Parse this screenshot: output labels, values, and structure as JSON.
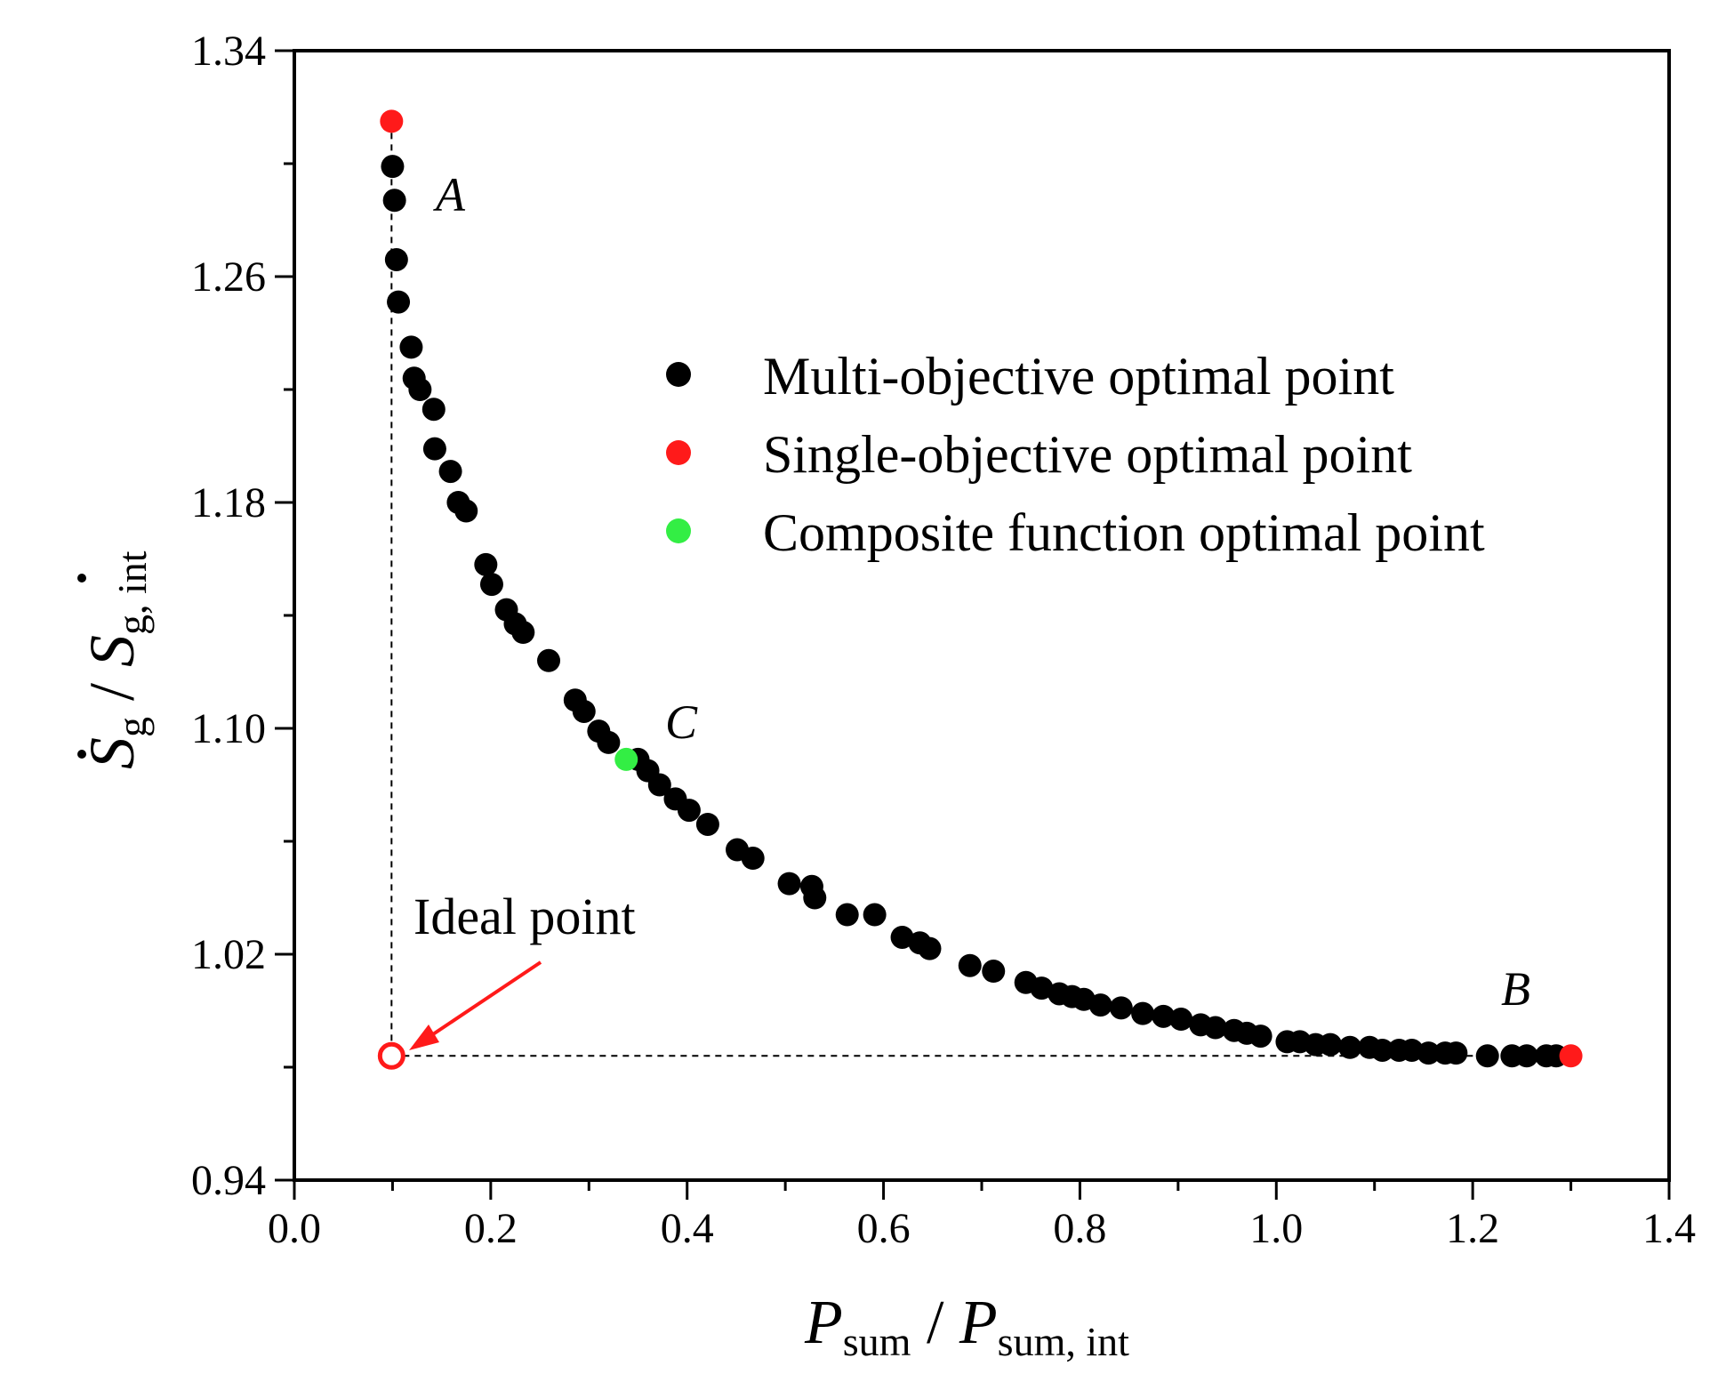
{
  "chart_data": {
    "type": "scatter",
    "title": "",
    "xlim": [
      0.0,
      1.4
    ],
    "ylim": [
      0.94,
      1.34
    ],
    "xticks": [
      "0.0",
      "0.2",
      "0.4",
      "0.6",
      "0.8",
      "1.0",
      "1.2",
      "1.4"
    ],
    "yticks": [
      "0.94",
      "1.02",
      "1.10",
      "1.18",
      "1.26",
      "1.34"
    ],
    "xlabel": {
      "main": "P",
      "sub1": "sum",
      "sep": " / ",
      "main2": "P",
      "sub2": "sum, int"
    },
    "ylabel": {
      "main": "S",
      "sub1": "g",
      "sep": " / ",
      "main2": "S",
      "sub2": "g, int"
    },
    "legend": [
      {
        "label": "Multi-objective optimal point",
        "color": "#000000"
      },
      {
        "label": "Single-objective optimal point",
        "color": "#ff1a1a"
      },
      {
        "label": "Composite function optimal point",
        "color": "#33ee44"
      }
    ],
    "annotations": {
      "A": "A",
      "B": "B",
      "C": "C",
      "ideal": "Ideal point"
    },
    "colors": {
      "multi": "#000000",
      "single": "#ff1a1a",
      "composite": "#33ee44",
      "arrow": "#ff1a1a"
    },
    "series": [
      {
        "name": "Multi-objective optimal point",
        "points": [
          [
            0.1,
            1.299
          ],
          [
            0.102,
            1.287
          ],
          [
            0.104,
            1.266
          ],
          [
            0.106,
            1.251
          ],
          [
            0.119,
            1.235
          ],
          [
            0.122,
            1.224
          ],
          [
            0.128,
            1.22
          ],
          [
            0.142,
            1.213
          ],
          [
            0.143,
            1.199
          ],
          [
            0.159,
            1.191
          ],
          [
            0.167,
            1.18
          ],
          [
            0.175,
            1.177
          ],
          [
            0.195,
            1.158
          ],
          [
            0.201,
            1.151
          ],
          [
            0.216,
            1.142
          ],
          [
            0.225,
            1.137
          ],
          [
            0.233,
            1.134
          ],
          [
            0.259,
            1.124
          ],
          [
            0.286,
            1.11
          ],
          [
            0.295,
            1.106
          ],
          [
            0.31,
            1.099
          ],
          [
            0.32,
            1.095
          ],
          [
            0.35,
            1.089
          ],
          [
            0.36,
            1.085
          ],
          [
            0.372,
            1.08
          ],
          [
            0.388,
            1.075
          ],
          [
            0.402,
            1.071
          ],
          [
            0.421,
            1.066
          ],
          [
            0.451,
            1.057
          ],
          [
            0.467,
            1.054
          ],
          [
            0.504,
            1.045
          ],
          [
            0.527,
            1.044
          ],
          [
            0.53,
            1.04
          ],
          [
            0.563,
            1.034
          ],
          [
            0.591,
            1.034
          ],
          [
            0.619,
            1.026
          ],
          [
            0.637,
            1.024
          ],
          [
            0.647,
            1.022
          ],
          [
            0.688,
            1.016
          ],
          [
            0.712,
            1.014
          ],
          [
            0.745,
            1.01
          ],
          [
            0.761,
            1.008
          ],
          [
            0.779,
            1.006
          ],
          [
            0.792,
            1.005
          ],
          [
            0.804,
            1.004
          ],
          [
            0.821,
            1.002
          ],
          [
            0.842,
            1.001
          ],
          [
            0.864,
            0.999
          ],
          [
            0.885,
            0.998
          ],
          [
            0.903,
            0.997
          ],
          [
            0.923,
            0.995
          ],
          [
            0.938,
            0.994
          ],
          [
            0.957,
            0.993
          ],
          [
            0.97,
            0.992
          ],
          [
            0.984,
            0.991
          ],
          [
            1.011,
            0.989
          ],
          [
            1.024,
            0.989
          ],
          [
            1.04,
            0.988
          ],
          [
            1.055,
            0.988
          ],
          [
            1.075,
            0.987
          ],
          [
            1.095,
            0.987
          ],
          [
            1.108,
            0.986
          ],
          [
            1.125,
            0.986
          ],
          [
            1.138,
            0.986
          ],
          [
            1.155,
            0.985
          ],
          [
            1.172,
            0.985
          ],
          [
            1.183,
            0.985
          ],
          [
            1.215,
            0.984
          ],
          [
            1.24,
            0.984
          ],
          [
            1.255,
            0.984
          ],
          [
            1.275,
            0.984
          ],
          [
            1.285,
            0.984
          ]
        ]
      },
      {
        "name": "Single-objective optimal point",
        "points": [
          [
            0.099,
            1.315
          ],
          [
            1.3,
            0.984
          ]
        ]
      },
      {
        "name": "Composite function optimal point",
        "points": [
          [
            0.338,
            1.089
          ]
        ]
      },
      {
        "name": "Ideal point",
        "points": [
          [
            0.099,
            0.984
          ]
        ]
      }
    ]
  }
}
